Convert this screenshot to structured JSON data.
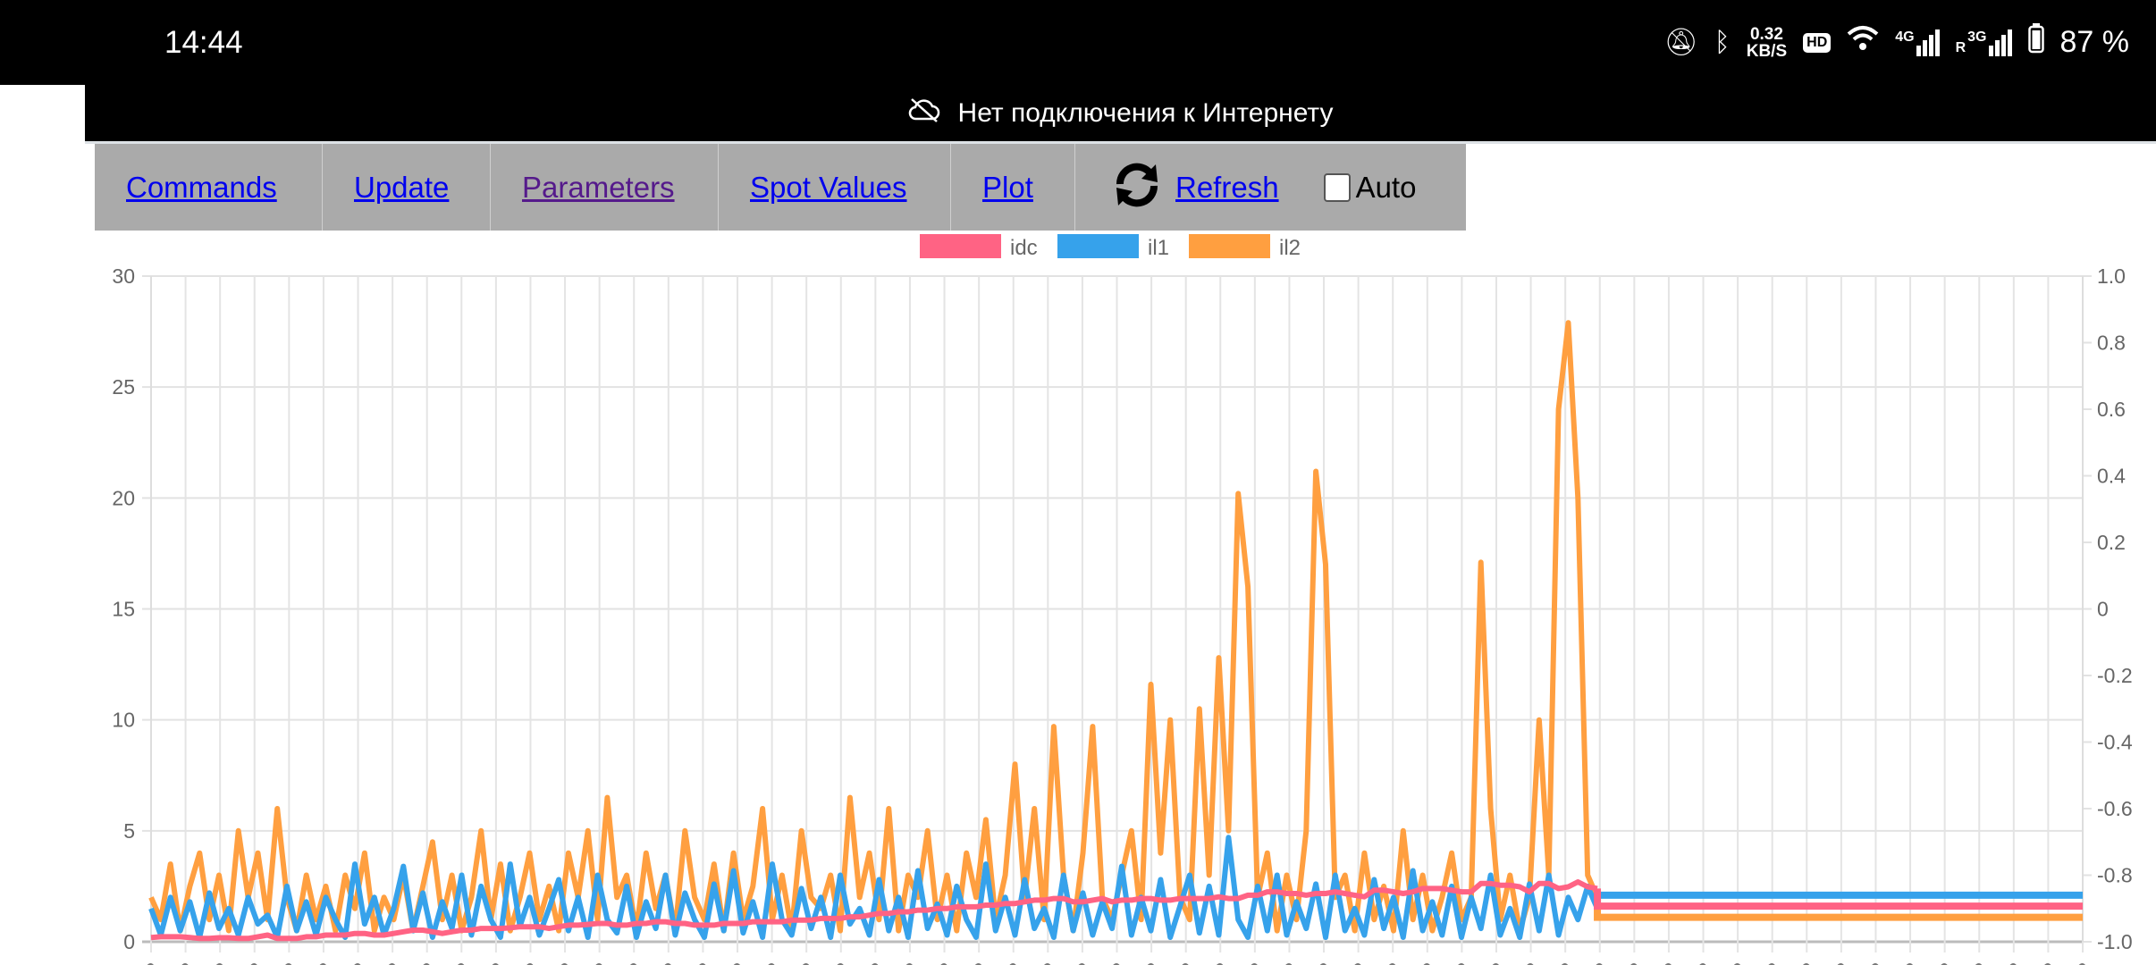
{
  "status_bar": {
    "time": "14:44",
    "speed_value": "0.32",
    "speed_unit": "KB/S",
    "hd_label": "HD",
    "net1": "4G",
    "net2": "3G",
    "roaming": "R",
    "battery": "87 %"
  },
  "banner": {
    "icon": "cloud-off-icon",
    "text": "Нет подключения к Интернету"
  },
  "nav": {
    "items": [
      {
        "label": "Commands"
      },
      {
        "label": "Update"
      },
      {
        "label": "Parameters"
      },
      {
        "label": "Spot Values"
      },
      {
        "label": "Plot"
      }
    ],
    "refresh_icon": "refresh-icon",
    "refresh_label": "Refresh",
    "auto_label": "Auto",
    "auto_checked": false
  },
  "chart_data": {
    "type": "line",
    "legend_position": "top",
    "grid": true,
    "x_count": 200,
    "y_left": {
      "min": 0,
      "max": 30,
      "ticks": [
        0,
        5,
        10,
        15,
        20,
        25,
        30
      ]
    },
    "y_right": {
      "min": -1.0,
      "max": 1.0,
      "ticks": [
        "1.0",
        "0.8",
        "0.6",
        "0.4",
        "0.2",
        "0",
        "-0.2",
        "-0.4",
        "-0.6",
        "-0.8",
        "-1.0"
      ]
    },
    "series": [
      {
        "name": "idc",
        "color": "#ff6384",
        "axis": "right",
        "hold_value": -0.893,
        "values": [
          -0.987,
          -0.985,
          -0.985,
          -0.985,
          -0.987,
          -0.99,
          -0.99,
          -0.988,
          -0.988,
          -0.99,
          -0.99,
          -0.985,
          -0.98,
          -0.99,
          -0.99,
          -0.99,
          -0.985,
          -0.985,
          -0.98,
          -0.98,
          -0.98,
          -0.975,
          -0.975,
          -0.98,
          -0.98,
          -0.975,
          -0.97,
          -0.965,
          -0.965,
          -0.97,
          -0.975,
          -0.97,
          -0.965,
          -0.965,
          -0.96,
          -0.96,
          -0.96,
          -0.958,
          -0.955,
          -0.955,
          -0.955,
          -0.96,
          -0.955,
          -0.95,
          -0.95,
          -0.948,
          -0.945,
          -0.945,
          -0.95,
          -0.95,
          -0.945,
          -0.945,
          -0.94,
          -0.94,
          -0.945,
          -0.945,
          -0.95,
          -0.95,
          -0.95,
          -0.945,
          -0.945,
          -0.945,
          -0.94,
          -0.94,
          -0.94,
          -0.94,
          -0.935,
          -0.935,
          -0.935,
          -0.93,
          -0.93,
          -0.93,
          -0.925,
          -0.925,
          -0.92,
          -0.915,
          -0.915,
          -0.91,
          -0.91,
          -0.905,
          -0.905,
          -0.9,
          -0.9,
          -0.895,
          -0.895,
          -0.895,
          -0.89,
          -0.89,
          -0.885,
          -0.885,
          -0.88,
          -0.875,
          -0.875,
          -0.87,
          -0.87,
          -0.88,
          -0.88,
          -0.875,
          -0.87,
          -0.88,
          -0.875,
          -0.875,
          -0.87,
          -0.87,
          -0.875,
          -0.875,
          -0.87,
          -0.87,
          -0.87,
          -0.87,
          -0.865,
          -0.87,
          -0.87,
          -0.86,
          -0.86,
          -0.85,
          -0.85,
          -0.855,
          -0.855,
          -0.86,
          -0.855,
          -0.855,
          -0.85,
          -0.855,
          -0.86,
          -0.865,
          -0.845,
          -0.845,
          -0.85,
          -0.855,
          -0.85,
          -0.84,
          -0.84,
          -0.84,
          -0.845,
          -0.85,
          -0.85,
          -0.825,
          -0.825,
          -0.83,
          -0.83,
          -0.835,
          -0.85,
          -0.825,
          -0.825,
          -0.84,
          -0.835,
          -0.82,
          -0.835,
          -0.84
        ]
      },
      {
        "name": "il1",
        "color": "#36a2eb",
        "axis": "left",
        "hold_value": 2.1,
        "values": [
          1.5,
          0.3,
          2,
          0.5,
          1.8,
          0.2,
          2.2,
          0.6,
          1.5,
          0.3,
          2,
          0.8,
          1.2,
          0.2,
          2.5,
          0.5,
          1.8,
          0.3,
          2,
          1,
          0.2,
          3.5,
          0.8,
          2,
          0.3,
          1.5,
          3.4,
          0.5,
          2.2,
          0.2,
          1.8,
          0.6,
          3,
          0.3,
          2.5,
          1,
          0.2,
          3.5,
          0.7,
          2,
          0.3,
          1.5,
          2.8,
          0.5,
          2,
          0.2,
          3,
          1,
          0.4,
          2.5,
          0.2,
          1.8,
          0.6,
          3,
          0.3,
          2.2,
          1,
          0.2,
          2.6,
          0.5,
          3.2,
          0.4,
          1.8,
          0.2,
          3.5,
          1,
          0.3,
          2.4,
          0.6,
          2,
          0.2,
          3,
          0.8,
          1.5,
          0.3,
          2.8,
          0.5,
          2,
          0.2,
          3.2,
          0.6,
          1.7,
          0.3,
          2.5,
          1,
          0.2,
          3.5,
          0.5,
          2,
          0.3,
          2.8,
          0.6,
          1.5,
          0.2,
          3,
          0.5,
          2.2,
          0.3,
          1.8,
          0.6,
          3.4,
          0.3,
          2,
          0.5,
          2.8,
          0.2,
          1.6,
          3,
          0.4,
          2.5,
          0.3,
          4.7,
          1,
          0.2,
          2.5,
          0.5,
          3,
          0.3,
          1.8,
          0.6,
          2.6,
          0.2,
          3,
          0.5,
          1.5,
          0.3,
          2.8,
          0.6,
          2,
          0.2,
          3.2,
          0.5,
          1.8,
          0.3,
          2.5,
          0.2,
          2,
          0.6,
          3,
          0.3,
          1.5,
          0.2,
          2.6,
          0.5,
          3,
          0.3,
          2,
          1,
          2.5,
          1.5
        ]
      },
      {
        "name": "il2",
        "color": "#ff9f40",
        "axis": "left",
        "hold_value": 1.1,
        "values": [
          2,
          1,
          3.5,
          0.5,
          2.5,
          4,
          1,
          3,
          0.5,
          5,
          2,
          4,
          1,
          6,
          2,
          0.5,
          3,
          1,
          2.5,
          0.5,
          3,
          1.5,
          4,
          0.5,
          2,
          1,
          3,
          0.5,
          2.5,
          4.5,
          1,
          3,
          0.5,
          2,
          5,
          1,
          3.5,
          0.5,
          2,
          4,
          1,
          2.5,
          0.5,
          4,
          2,
          5,
          1,
          6.5,
          2,
          3,
          0.5,
          4,
          1.5,
          3,
          0.5,
          5,
          2,
          1,
          3.5,
          0.5,
          4,
          1,
          2.5,
          6,
          1,
          3,
          0.5,
          5,
          2,
          1.5,
          3,
          0.5,
          6.5,
          2,
          4,
          1,
          6,
          0.5,
          3,
          2,
          5,
          1,
          3,
          0.5,
          4,
          2,
          5.5,
          1,
          3,
          8,
          2,
          6,
          1,
          9.7,
          3,
          0.5,
          4,
          9.7,
          2,
          1,
          3,
          5,
          1,
          11.6,
          4,
          10,
          2,
          1,
          10.5,
          3,
          12.8,
          5,
          20.2,
          16,
          2,
          4,
          0.5,
          3,
          1,
          5,
          21.2,
          17,
          2,
          3,
          0.5,
          4,
          1,
          2.5,
          0.5,
          5,
          1,
          3,
          0.5,
          2,
          4,
          1,
          2,
          17.1,
          6,
          1,
          3,
          0.5,
          2,
          10,
          3,
          24,
          27.9,
          20,
          3,
          2
        ]
      }
    ]
  }
}
